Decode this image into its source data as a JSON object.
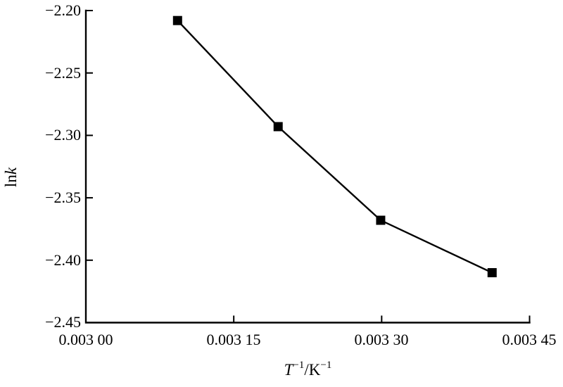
{
  "chart_data": {
    "type": "line",
    "xlabel": "T⁻¹/K⁻¹",
    "ylabel": "lnk",
    "x": [
      0.003093,
      0.003195,
      0.003299,
      0.003412
    ],
    "y": [
      -2.208,
      -2.293,
      -2.368,
      -2.41
    ],
    "xlim": [
      0.003,
      0.00345
    ],
    "ylim": [
      -2.45,
      -2.2
    ],
    "xticks": [
      0.003,
      0.00315,
      0.0033,
      0.00345
    ],
    "xtick_labels": [
      "0.003 00",
      "0.003 15",
      "0.003 30",
      "0.003 45"
    ],
    "yticks": [
      -2.2,
      -2.25,
      -2.3,
      -2.35,
      -2.4,
      -2.45
    ],
    "ytick_labels": [
      "−2.20",
      "−2.25",
      "−2.30",
      "−2.35",
      "−2.40",
      "−2.45"
    ],
    "marker": "square",
    "line_color": "#000000",
    "marker_color": "#000000",
    "axis_color": "#000000",
    "background": "#ffffff",
    "grid": false,
    "legend": "none"
  },
  "axis_titles": {
    "y_plain": "ln",
    "y_italic": "k",
    "x_var": "T",
    "x_sup1": "−1",
    "x_unit": "/K",
    "x_sup2": "−1"
  }
}
